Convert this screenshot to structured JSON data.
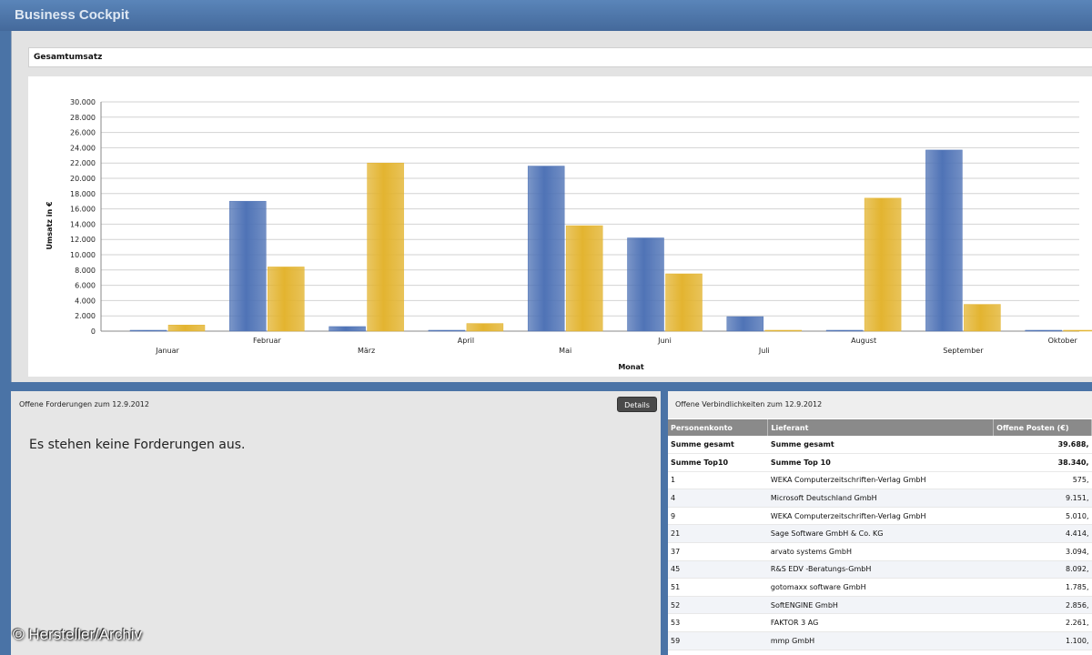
{
  "window": {
    "title": "Business Cockpit"
  },
  "chart_panel": {
    "title": "Gesamtumsatz"
  },
  "chart_data": {
    "type": "bar",
    "categories": [
      "Januar",
      "Februar",
      "März",
      "April",
      "Mai",
      "Juni",
      "Juli",
      "August",
      "September",
      "Oktober"
    ],
    "series": [
      {
        "values": [
          50,
          17000,
          600,
          0,
          21600,
          12200,
          1900,
          0,
          23700,
          100
        ],
        "color": "#4f73b6"
      },
      {
        "values": [
          800,
          8400,
          22000,
          1000,
          13800,
          7500,
          100,
          17400,
          3500,
          50
        ],
        "color": "#e3b430"
      }
    ],
    "y_ticks": [
      "0",
      "2.000",
      "4.000",
      "6.000",
      "8.000",
      "10.000",
      "12.000",
      "14.000",
      "16.000",
      "18.000",
      "20.000",
      "22.000",
      "24.000",
      "26.000",
      "28.000",
      "30.000"
    ],
    "ylim": [
      0,
      30000
    ],
    "xlabel": "Monat",
    "ylabel": "Umsatz in €",
    "grid": true
  },
  "receivables": {
    "header": "Offene Forderungen zum 12.9.2012",
    "details_label": "Details",
    "message": "Es stehen keine Forderungen aus.",
    "credit": "© Hersteller/Archiv"
  },
  "payables": {
    "header": "Offene Verbindlichkeiten zum 12.9.2012",
    "columns": [
      "Personenkonto",
      "Lieferant",
      "Offene Posten (€)"
    ],
    "rows": [
      [
        "Summe gesamt",
        "Summe gesamt",
        "39.688,"
      ],
      [
        "Summe Top10",
        "Summe Top 10",
        "38.340,"
      ],
      [
        "1",
        "WEKA Computerzeitschriften-Verlag GmbH",
        "575,"
      ],
      [
        "4",
        "Microsoft Deutschland GmbH",
        "9.151,"
      ],
      [
        "9",
        "WEKA Computerzeitschriften-Verlag GmbH",
        "5.010,"
      ],
      [
        "21",
        "Sage Software GmbH & Co. KG",
        "4.414,"
      ],
      [
        "37",
        "arvato systems GmbH",
        "3.094,"
      ],
      [
        "45",
        "R&S EDV -Beratungs-GmbH",
        "8.092,"
      ],
      [
        "51",
        "gotomaxx software GmbH",
        "1.785,"
      ],
      [
        "52",
        "SoftENGINE GmbH",
        "2.856,"
      ],
      [
        "53",
        "FAKTOR 3 AG",
        "2.261,"
      ],
      [
        "59",
        "mmp GmbH",
        "1.100,"
      ]
    ]
  }
}
